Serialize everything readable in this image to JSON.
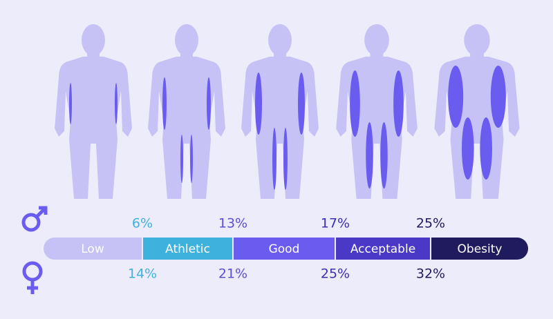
{
  "scale": {
    "segments": [
      {
        "label": "Low"
      },
      {
        "label": "Athletic"
      },
      {
        "label": "Good"
      },
      {
        "label": "Acceptable"
      },
      {
        "label": "Obesity"
      }
    ]
  },
  "male": {
    "thresholds": [
      "6%",
      "13%",
      "17%",
      "25%"
    ]
  },
  "female": {
    "thresholds": [
      "14%",
      "21%",
      "25%",
      "32%"
    ]
  }
}
